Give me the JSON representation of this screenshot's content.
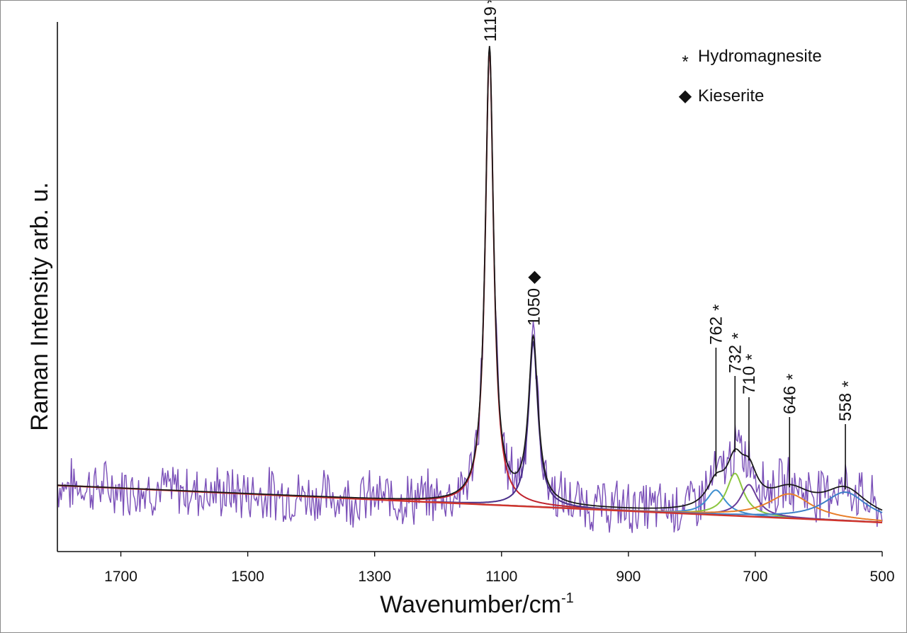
{
  "chart_data": {
    "type": "line",
    "title": "",
    "xlabel": "Wavenumber/cm",
    "xlabel_sup": "-1",
    "ylabel": "Raman Intensity arb. u.",
    "xlim": [
      1800,
      500
    ],
    "x_reversed": true,
    "ylim": [
      0,
      100
    ],
    "y_ticks_shown": false,
    "grid": false,
    "x_ticks": [
      "1700",
      "1500",
      "1300",
      "1100",
      "900",
      "700",
      "500"
    ],
    "x_tick_values": [
      1700,
      1500,
      1300,
      1100,
      900,
      700,
      500
    ],
    "baseline": {
      "start_x": 1800,
      "start_y": 12.5,
      "end_x": 500,
      "end_y": 5.5
    },
    "components": [
      {
        "name": "1119 (hydromagnesite)",
        "center": 1119,
        "height": 86,
        "hwhm": 8,
        "color": "#c0242e"
      },
      {
        "name": "1050 (kieserite)",
        "center": 1050,
        "height": 31,
        "hwhm": 9,
        "color": "#4a2f8a"
      },
      {
        "name": "762",
        "center": 762,
        "height": 4.7,
        "hwhm": 18,
        "color": "#3e8fd0"
      },
      {
        "name": "732",
        "center": 732,
        "height": 8,
        "hwhm": 16,
        "color": "#8cc63f"
      },
      {
        "name": "710",
        "center": 710,
        "height": 6,
        "hwhm": 16,
        "color": "#6a3d9a"
      },
      {
        "name": "646",
        "center": 646,
        "height": 4.6,
        "hwhm": 42,
        "color": "#e87f2a"
      },
      {
        "name": "558",
        "center": 558,
        "height": 5.4,
        "hwhm": 42,
        "color": "#3e7fc8"
      }
    ],
    "series": [
      {
        "name": "measured spectrum",
        "color": "#7a4fb8",
        "noise_amplitude": 4.5
      },
      {
        "name": "cumulative fit",
        "color": "#1a1a1a"
      },
      {
        "name": "baseline",
        "color": "#d0342c"
      }
    ],
    "peak_labels": [
      {
        "text": "1119",
        "marker": "*",
        "x": 1119
      },
      {
        "text": "1050",
        "marker": "◆",
        "x": 1050
      },
      {
        "text": "762",
        "marker": "*",
        "x": 762
      },
      {
        "text": "732",
        "marker": "*",
        "x": 732
      },
      {
        "text": "710",
        "marker": "*",
        "x": 710
      },
      {
        "text": "646",
        "marker": "*",
        "x": 646
      },
      {
        "text": "558",
        "marker": "*",
        "x": 558
      }
    ],
    "legend": {
      "position": "top-right",
      "entries": [
        {
          "marker": "*",
          "label": "Hydromagnesite"
        },
        {
          "marker": "◆",
          "label": "Kieserite"
        }
      ]
    }
  }
}
